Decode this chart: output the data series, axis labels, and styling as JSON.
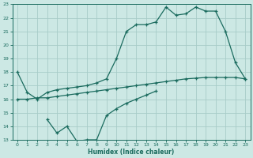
{
  "xlabel": "Humidex (Indice chaleur)",
  "bg_color": "#cce8e4",
  "grid_color": "#a8ccc8",
  "line_color": "#1a6b5e",
  "xlim_min": -0.5,
  "xlim_max": 23.5,
  "ylim_min": 13,
  "ylim_max": 23,
  "yticks": [
    13,
    14,
    15,
    16,
    17,
    18,
    19,
    20,
    21,
    22,
    23
  ],
  "xticks": [
    0,
    1,
    2,
    3,
    4,
    5,
    6,
    7,
    8,
    9,
    10,
    11,
    12,
    13,
    14,
    15,
    16,
    17,
    18,
    19,
    20,
    21,
    22,
    23
  ],
  "line1_x": [
    0,
    1,
    2,
    3,
    4,
    5,
    6,
    7,
    8,
    9,
    10,
    11,
    12,
    13,
    14,
    15,
    16,
    17,
    18,
    19,
    20,
    21,
    22,
    23
  ],
  "line1_y": [
    18.0,
    16.5,
    16.0,
    16.5,
    16.7,
    16.8,
    16.9,
    17.0,
    17.2,
    17.5,
    19.0,
    21.0,
    21.5,
    21.5,
    21.7,
    22.8,
    22.2,
    22.3,
    22.8,
    22.5,
    22.5,
    21.0,
    18.7,
    17.5
  ],
  "line2_x": [
    0,
    1,
    2,
    3,
    4,
    5,
    6,
    7,
    8,
    9,
    10,
    11,
    12,
    13,
    14,
    15,
    16,
    17,
    18,
    19,
    20,
    21,
    22,
    23
  ],
  "line2_y": [
    16.0,
    16.0,
    16.1,
    16.1,
    16.2,
    16.3,
    16.4,
    16.5,
    16.6,
    16.7,
    16.8,
    16.9,
    17.0,
    17.1,
    17.2,
    17.3,
    17.4,
    17.5,
    17.55,
    17.6,
    17.6,
    17.6,
    17.6,
    17.5
  ],
  "line3_x": [
    3,
    4,
    5,
    6,
    7,
    8,
    9,
    10,
    11,
    12,
    13,
    14
  ],
  "line3_y": [
    14.5,
    13.5,
    14.0,
    12.9,
    13.0,
    13.0,
    14.8,
    15.3,
    15.7,
    16.0,
    16.3,
    16.6
  ]
}
